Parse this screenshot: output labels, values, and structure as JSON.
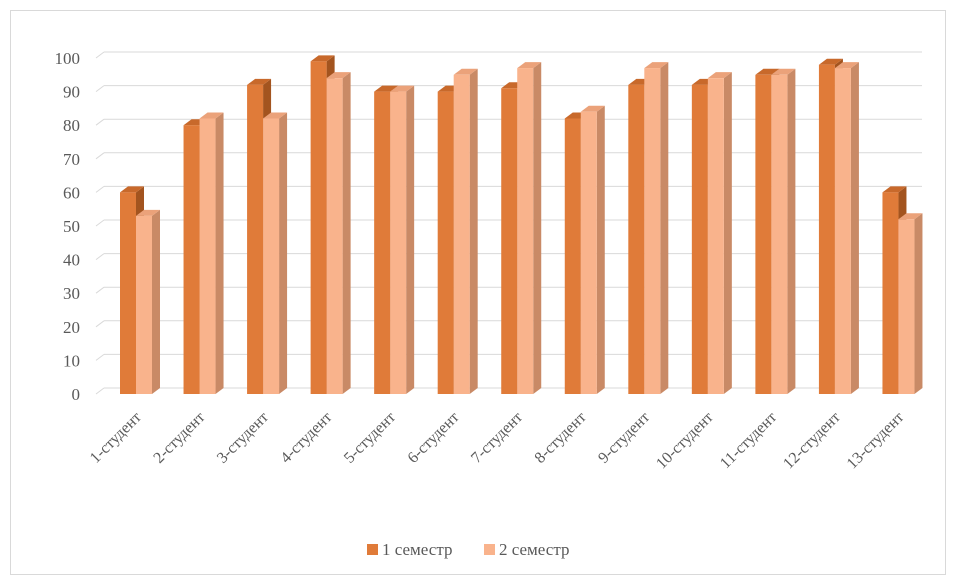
{
  "chart_data": {
    "type": "bar",
    "title": "",
    "xlabel": "",
    "ylabel": "",
    "categories": [
      "1-студент",
      "2-студент",
      "3-студент",
      "4-студент",
      "5-студент",
      "6-студент",
      "7-студент",
      "8-студент",
      "9-студент",
      "10-студент",
      "11-студент",
      "12-студент",
      "13-студент"
    ],
    "series": [
      {
        "name": "1 семестр",
        "values": [
          60,
          80,
          92,
          99,
          90,
          90,
          91,
          82,
          92,
          92,
          95,
          98,
          60
        ]
      },
      {
        "name": "2 семестр",
        "values": [
          53,
          82,
          82,
          94,
          90,
          95,
          97,
          84,
          97,
          94,
          95,
          97,
          52
        ]
      }
    ],
    "ylim": [
      0,
      100
    ],
    "yticks": [
      0,
      10,
      20,
      30,
      40,
      50,
      60,
      70,
      80,
      90,
      100
    ],
    "grid": true,
    "legend_position": "bottom",
    "colors": {
      "series1_front": "#E07B39",
      "series1_side": "#A3541F",
      "series1_top": "#C8692B",
      "series2_front": "#F9B38C",
      "series2_side": "#C98A66",
      "series2_top": "#EBA27A",
      "grid": "#d9d9d9"
    }
  }
}
